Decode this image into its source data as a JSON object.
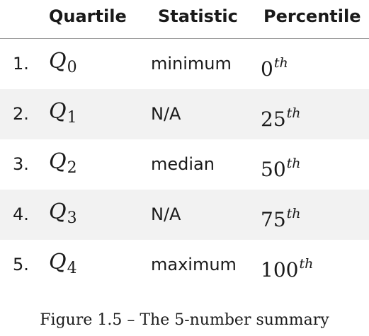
{
  "table": {
    "headers": {
      "quartile": "Quartile",
      "statistic": "Statistic",
      "percentile": "Percentile"
    },
    "rows": [
      {
        "number": "1.",
        "q_letter": "Q",
        "q_sub": "0",
        "statistic": "minimum",
        "percentile": "0",
        "percentile_sup": "th"
      },
      {
        "number": "2.",
        "q_letter": "Q",
        "q_sub": "1",
        "statistic": "N/A",
        "percentile": "25",
        "percentile_sup": "th"
      },
      {
        "number": "3.",
        "q_letter": "Q",
        "q_sub": "2",
        "statistic": "median",
        "percentile": "50",
        "percentile_sup": "th"
      },
      {
        "number": "4.",
        "q_letter": "Q",
        "q_sub": "3",
        "statistic": "N/A",
        "percentile": "75",
        "percentile_sup": "th"
      },
      {
        "number": "5.",
        "q_letter": "Q",
        "q_sub": "4",
        "statistic": "maximum",
        "percentile": "100",
        "percentile_sup": "th"
      }
    ]
  },
  "caption": "Figure 1.5 – The 5-number summary",
  "colors": {
    "row_shade": "#f2f2f2",
    "header_rule": "#9a9a9a",
    "text": "#1a1a1a"
  }
}
